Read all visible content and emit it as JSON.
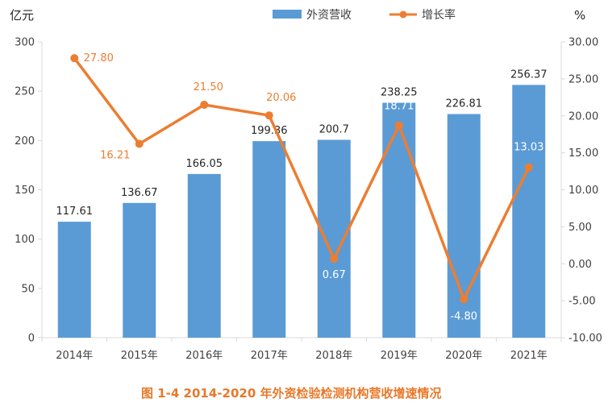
{
  "chart_data": {
    "type": "bar",
    "categories": [
      "2014年",
      "2015年",
      "2016年",
      "2017年",
      "2018年",
      "2019年",
      "2020年",
      "2021年"
    ],
    "series": [
      {
        "name": "外资营收",
        "type": "bar",
        "axis": "left",
        "values": [
          117.61,
          136.67,
          166.05,
          199.36,
          200.7,
          238.25,
          226.81,
          256.37
        ],
        "labels": [
          "117.61",
          "136.67",
          "166.05",
          "199.36",
          "200.7",
          "238.25",
          "226.81",
          "256.37"
        ],
        "color": "#5b9bd5"
      },
      {
        "name": "增长率",
        "type": "line",
        "axis": "right",
        "values": [
          27.8,
          16.21,
          21.5,
          20.06,
          0.67,
          18.71,
          -4.8,
          13.03
        ],
        "labels": [
          "27.80",
          "16.21",
          "21.50",
          "20.06",
          "0.67",
          "18.71",
          "-4.80",
          "13.03"
        ],
        "color": "#ed7d31"
      }
    ],
    "left_axis": {
      "unit": "亿元",
      "ylim": [
        0,
        300
      ],
      "ticks": [
        0,
        50,
        100,
        150,
        200,
        250,
        300
      ],
      "tick_labels": [
        "0",
        "50",
        "100",
        "150",
        "200",
        "250",
        "300"
      ]
    },
    "right_axis": {
      "unit": "%",
      "ylim": [
        -10,
        30
      ],
      "ticks": [
        -10,
        -5,
        0,
        5,
        10,
        15,
        20,
        25,
        30
      ],
      "tick_labels": [
        "-10.00",
        "-5.00",
        "0.00",
        "5.00",
        "10.00",
        "15.00",
        "20.00",
        "25.00",
        "30.00"
      ]
    },
    "grid": false,
    "legend_position": "top-center",
    "caption": "图 1-4    2014-2020 年外资检验检测机构营收增速情况"
  },
  "colors": {
    "bar": "#5b9bd5",
    "line": "#ed7d31",
    "axis": "#d9d9d9",
    "text": "#404040",
    "caption": "#e8782a"
  }
}
